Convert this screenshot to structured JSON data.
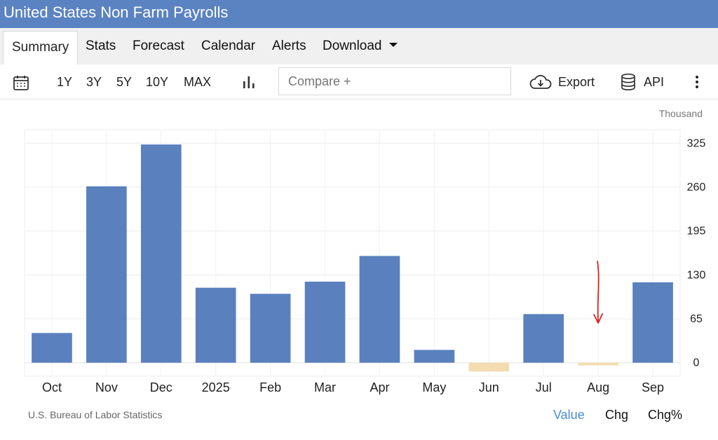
{
  "header": {
    "title": "United States Non Farm Payrolls"
  },
  "tabs": [
    {
      "label": "Summary",
      "active": true
    },
    {
      "label": "Stats"
    },
    {
      "label": "Forecast"
    },
    {
      "label": "Calendar"
    },
    {
      "label": "Alerts"
    },
    {
      "label": "Download"
    }
  ],
  "toolbar": {
    "ranges": [
      "1Y",
      "3Y",
      "5Y",
      "10Y",
      "MAX"
    ],
    "compare_placeholder": "Compare +",
    "export_label": "Export",
    "api_label": "API"
  },
  "footer": {
    "source": "U.S. Bureau of Labor Statistics",
    "view_options": [
      "Value",
      "Chg",
      "Chg%"
    ],
    "active_view": "Value"
  },
  "colors": {
    "header": "#5b83c2",
    "positive_bar": "#5a80be",
    "negative_bar": "#f3dcb0",
    "annotation": "#e02020"
  },
  "chart_data": {
    "type": "bar",
    "unit": "Thousand",
    "categories": [
      "Oct",
      "Nov",
      "Dec",
      "2025",
      "Feb",
      "Mar",
      "Apr",
      "May",
      "Jun",
      "Jul",
      "Aug",
      "Sep"
    ],
    "values": [
      44,
      261,
      323,
      111,
      102,
      120,
      158,
      19,
      -13,
      72,
      -4,
      119
    ],
    "y_ticks": [
      0,
      65,
      130,
      195,
      260,
      325
    ],
    "ylim": [
      -20,
      345
    ],
    "grid": true,
    "axis_position": "right",
    "annotation": {
      "type": "arrow",
      "target": "Aug",
      "color": "#e02020"
    }
  }
}
